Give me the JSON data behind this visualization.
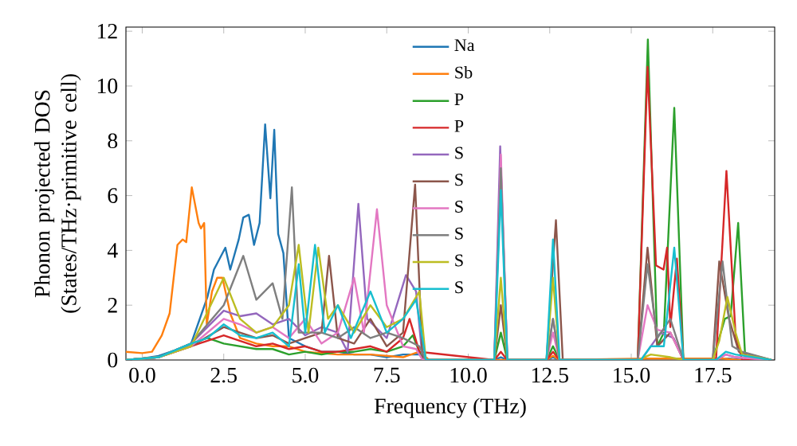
{
  "chart_data": {
    "type": "line",
    "xlabel": "Frequency (THz)",
    "ylabel": "Phonon projected DOS (States/THz·primitive cell)",
    "xlim": [
      -0.5,
      19.4
    ],
    "ylim": [
      0,
      12.15
    ],
    "xticks": [
      {
        "value": 0,
        "label": "0.0"
      },
      {
        "value": 2.5,
        "label": "2.5"
      },
      {
        "value": 5,
        "label": "5.0"
      },
      {
        "value": 7.5,
        "label": "7.5"
      },
      {
        "value": 10,
        "label": "10.0"
      },
      {
        "value": 12.5,
        "label": "12.5"
      },
      {
        "value": 15,
        "label": "15.0"
      },
      {
        "value": 17.5,
        "label": "17.5"
      }
    ],
    "yticks": [
      0,
      2,
      4,
      6,
      8,
      10,
      12
    ],
    "legend": "top",
    "line_style": "solid",
    "series": [
      {
        "name": "Na",
        "color": "#1f77b4",
        "x": [
          -0.5,
          0,
          0.5,
          1,
          1.5,
          2,
          2.2,
          2.55,
          2.7,
          2.96,
          3.1,
          3.27,
          3.43,
          3.6,
          3.77,
          3.93,
          4.05,
          4.17,
          4.33,
          4.5,
          5,
          5.5,
          6,
          6.5,
          7,
          7.5,
          8,
          8.5,
          8.8,
          10.8,
          11,
          11.2,
          12.4,
          12.6,
          12.8,
          15.3,
          15.6,
          16.0,
          16.4,
          16.6,
          17.6,
          18.0,
          18.4,
          19.3
        ],
        "values": [
          0,
          0.05,
          0.15,
          0.35,
          0.6,
          2.3,
          3.3,
          4.1,
          3.3,
          4.4,
          5.2,
          5.3,
          4.2,
          5.0,
          8.6,
          5.9,
          8.4,
          4.6,
          3.9,
          0.8,
          0.5,
          0.3,
          0.3,
          0.2,
          0.2,
          0.1,
          0.2,
          0.2,
          0,
          0,
          0.1,
          0,
          0,
          0.1,
          0,
          0,
          0.05,
          0.05,
          0.05,
          0,
          0,
          0.05,
          0,
          0
        ]
      },
      {
        "name": "Sb",
        "color": "#ff7f0e",
        "x": [
          -0.5,
          0,
          0.3,
          0.6,
          0.84,
          1.08,
          1.24,
          1.35,
          1.52,
          1.73,
          1.8,
          1.9,
          1.98,
          2.14,
          2.3,
          2.46,
          2.7,
          3.0,
          3.5,
          4.0,
          4.5,
          5.0,
          6.0,
          7.0,
          8.0,
          8.5,
          8.8,
          12.4,
          12.6,
          12.8,
          15.5,
          16.3,
          17.8,
          18.3,
          19.3
        ],
        "values": [
          0.3,
          0.25,
          0.3,
          0.9,
          1.7,
          4.2,
          4.4,
          4.3,
          6.3,
          5.0,
          4.8,
          5.0,
          1.3,
          2.5,
          3.0,
          3.0,
          1.7,
          0.8,
          0.6,
          0.5,
          0.5,
          0.3,
          0.2,
          0.2,
          0.1,
          0.3,
          0,
          0,
          0.15,
          0,
          0.05,
          0.05,
          0.05,
          0,
          0
        ]
      },
      {
        "name": "P",
        "color": "#2ca02c",
        "x": [
          -0.5,
          0.5,
          1.5,
          2.0,
          2.5,
          3.0,
          3.5,
          4.0,
          4.5,
          5.0,
          5.5,
          6.0,
          6.5,
          7.0,
          7.5,
          8.0,
          8.3,
          8.6,
          10.8,
          11.0,
          11.2,
          12.4,
          12.6,
          12.8,
          15.2,
          15.51,
          15.8,
          16.0,
          16.32,
          16.6,
          17.5,
          17.87,
          18.05,
          18.28,
          18.5,
          19.3
        ],
        "values": [
          0,
          0.1,
          0.6,
          0.8,
          0.6,
          0.5,
          0.4,
          0.4,
          0.2,
          0.3,
          0.2,
          0.3,
          0.3,
          0.4,
          0.3,
          0.5,
          0.9,
          0,
          0,
          1.0,
          0,
          0,
          0.5,
          0,
          0,
          11.7,
          0.5,
          1.0,
          9.2,
          0,
          0,
          1.5,
          1.6,
          5.0,
          0,
          0
        ]
      },
      {
        "name": "P",
        "color": "#d62728",
        "x": [
          -0.5,
          0.5,
          1.5,
          2.5,
          3.0,
          3.5,
          4.0,
          4.5,
          5.0,
          5.5,
          6.0,
          6.5,
          7.0,
          7.5,
          8.0,
          8.2,
          8.5,
          10.8,
          11.0,
          11.2,
          12.4,
          12.6,
          12.8,
          15.2,
          15.5,
          15.76,
          15.99,
          16.1,
          16.2,
          16.4,
          16.6,
          17.6,
          17.92,
          18.2,
          18.4,
          19.3
        ],
        "values": [
          0,
          0.1,
          0.5,
          0.9,
          0.7,
          0.5,
          0.6,
          0.4,
          0.5,
          0.3,
          0.3,
          0.4,
          0.5,
          0.3,
          0.8,
          1.5,
          0.3,
          0,
          0.3,
          0,
          0,
          0.3,
          0,
          0,
          10.7,
          3.45,
          3.3,
          4.1,
          1.2,
          3.7,
          0,
          0,
          6.9,
          0.9,
          0,
          0
        ]
      },
      {
        "name": "S",
        "color": "#9467bd",
        "x": [
          -0.5,
          0.5,
          1.5,
          2.5,
          3.0,
          3.5,
          4.0,
          4.5,
          5.0,
          5.5,
          6.0,
          6.3,
          6.63,
          6.9,
          7.5,
          8.09,
          8.4,
          8.6,
          10.8,
          10.98,
          11.2,
          12.4,
          12.6,
          12.8,
          15.3,
          15.6,
          15.9,
          16.3,
          16.6,
          17.6,
          17.9,
          18.2,
          19.3
        ],
        "values": [
          0,
          0.1,
          0.6,
          1.8,
          1.6,
          1.7,
          1.3,
          1.5,
          0.9,
          1.2,
          1.0,
          0.3,
          5.7,
          1.5,
          0.8,
          3.1,
          2.5,
          0,
          0,
          7.8,
          0,
          0,
          1.5,
          0,
          0,
          0.5,
          1.0,
          0.8,
          0,
          0,
          0.2,
          0.1,
          0
        ]
      },
      {
        "name": "S",
        "color": "#8c564b",
        "x": [
          -0.5,
          0.5,
          1.5,
          2.5,
          3.0,
          3.5,
          4.0,
          4.5,
          5.0,
          5.5,
          5.73,
          6.0,
          6.5,
          7.0,
          7.5,
          8.0,
          8.37,
          8.6,
          10.8,
          11.0,
          11.2,
          12.4,
          12.69,
          12.9,
          15.2,
          15.5,
          15.8,
          16.2,
          16.6,
          17.5,
          17.7,
          18.0,
          18.3,
          19.3
        ],
        "values": [
          0,
          0.1,
          0.5,
          1.2,
          1.0,
          0.8,
          0.9,
          0.6,
          0.8,
          1.0,
          3.8,
          0.8,
          0.6,
          1.5,
          0.5,
          1.0,
          6.4,
          0,
          0,
          2.0,
          0,
          0,
          5.1,
          0,
          0,
          4.1,
          0.5,
          1.0,
          0,
          0,
          3.6,
          1.5,
          0.3,
          0
        ]
      },
      {
        "name": "S",
        "color": "#e377c2",
        "x": [
          -0.5,
          0.5,
          1.5,
          2.5,
          3.0,
          3.5,
          4.0,
          4.5,
          5.0,
          5.5,
          6.0,
          6.5,
          6.8,
          7.2,
          7.5,
          8.0,
          8.4,
          8.6,
          10.8,
          11.0,
          11.2,
          12.4,
          12.6,
          12.8,
          15.2,
          15.5,
          15.8,
          16.2,
          16.6,
          17.6,
          17.9,
          18.2,
          19.3
        ],
        "values": [
          0,
          0.1,
          0.5,
          1.5,
          1.3,
          1.0,
          1.2,
          0.8,
          1.5,
          0.6,
          1.0,
          3.0,
          1.0,
          5.5,
          2.0,
          0.5,
          0.4,
          0,
          0,
          7.5,
          0,
          0,
          1.0,
          0,
          0,
          2.0,
          1.1,
          1.0,
          0,
          0,
          0.2,
          0.1,
          0
        ]
      },
      {
        "name": "S",
        "color": "#7f7f7f",
        "x": [
          -0.5,
          0.5,
          1.5,
          2.5,
          3.1,
          3.5,
          4.0,
          4.3,
          4.59,
          4.8,
          5.5,
          6.0,
          6.5,
          7.0,
          7.5,
          8.0,
          8.5,
          8.7,
          10.8,
          11.0,
          11.2,
          12.4,
          12.6,
          12.8,
          15.2,
          15.5,
          15.8,
          16.2,
          16.6,
          17.5,
          17.8,
          18.1,
          18.4,
          19.3
        ],
        "values": [
          0,
          0.1,
          0.6,
          2.0,
          3.8,
          2.2,
          2.8,
          1.5,
          6.3,
          1.0,
          1.0,
          0.8,
          1.2,
          0.8,
          1.0,
          0.8,
          0.5,
          0,
          0,
          7.0,
          0,
          0,
          1.5,
          0,
          0,
          3.5,
          0.8,
          1.5,
          0,
          0,
          3.6,
          0.5,
          0.3,
          0
        ]
      },
      {
        "name": "S",
        "color": "#bcbd22",
        "x": [
          -0.5,
          0.5,
          1.5,
          2.5,
          3.0,
          3.5,
          4.0,
          4.5,
          4.8,
          5.1,
          5.4,
          5.7,
          6.0,
          6.5,
          7.0,
          7.5,
          8.0,
          8.5,
          8.7,
          10.8,
          11.0,
          11.2,
          12.4,
          12.6,
          12.8,
          15.2,
          15.6,
          16.2,
          16.6,
          17.5,
          17.7,
          17.95,
          18.2,
          18.4,
          19.3
        ],
        "values": [
          0,
          0.1,
          0.5,
          3.0,
          1.5,
          1.0,
          1.2,
          2.0,
          4.2,
          1.0,
          4.1,
          1.5,
          2.0,
          1.0,
          2.0,
          1.2,
          1.5,
          2.5,
          0,
          0,
          3.0,
          0,
          0,
          3.0,
          0,
          0,
          0.2,
          0.1,
          0,
          0,
          0.7,
          2.3,
          1.0,
          0.2,
          0
        ]
      },
      {
        "name": "S",
        "color": "#17becf",
        "x": [
          -0.5,
          0.5,
          1.5,
          2.0,
          2.5,
          3.0,
          3.5,
          4.0,
          4.5,
          4.8,
          5.0,
          5.3,
          5.6,
          6.0,
          6.4,
          7.0,
          7.5,
          8.0,
          8.4,
          8.7,
          10.8,
          11.0,
          11.2,
          12.4,
          12.6,
          12.8,
          15.3,
          15.6,
          16.0,
          16.32,
          16.6,
          17.6,
          17.9,
          18.2,
          19.3
        ],
        "values": [
          0,
          0.1,
          0.6,
          0.8,
          1.3,
          0.9,
          0.8,
          1.0,
          0.5,
          3.5,
          1.0,
          4.2,
          1.0,
          2.0,
          0.8,
          2.5,
          1.0,
          1.5,
          2.2,
          0,
          0,
          6.2,
          0,
          0,
          4.4,
          0,
          0,
          0.5,
          0.5,
          4.1,
          0,
          0,
          0.3,
          0.2,
          0
        ]
      }
    ]
  }
}
